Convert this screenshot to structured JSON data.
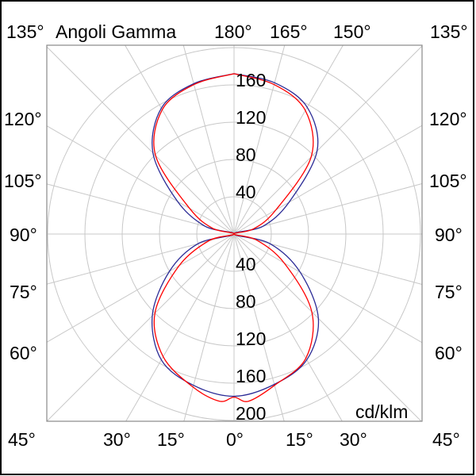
{
  "chart_data": {
    "type": "polar-line",
    "title": "Angoli Gamma",
    "unit_label": "cd/klm",
    "r_ticks": [
      "40",
      "80",
      "120",
      "160",
      "200"
    ],
    "r_tick_values": [
      40,
      80,
      120,
      160,
      200
    ],
    "r_max": 200,
    "angle_step_deg": 15,
    "grid": true,
    "angle_labels": {
      "top": [
        "135°",
        "180°",
        "165°",
        "150°",
        "135°"
      ],
      "left": [
        "120°",
        "105°",
        "90°",
        "75°",
        "60°"
      ],
      "right": [
        "120°",
        "105°",
        "90°",
        "75°",
        "60°"
      ],
      "bottom": [
        "45°",
        "30°",
        "15°",
        "0°",
        "15°",
        "30°",
        "45°"
      ]
    },
    "series": [
      {
        "color": "#2b2b96",
        "gamma": [
          -180,
          -165,
          -150,
          -135,
          -120,
          -105,
          -90,
          -75,
          -60,
          -45,
          -30,
          -15,
          0,
          15,
          30,
          45,
          60,
          75,
          90,
          105,
          120,
          135,
          150,
          165,
          180
        ],
        "values": [
          172,
          167,
          156,
          123,
          70,
          32,
          0,
          40,
          80,
          124,
          156,
          168,
          174,
          167,
          156,
          128,
          82,
          40,
          0,
          32,
          68,
          126,
          157,
          168,
          172
        ]
      },
      {
        "color": "#ff0000",
        "gamma": [
          -180,
          -165,
          -150,
          -135,
          -120,
          -105,
          -90,
          -75,
          -60,
          -45,
          -30,
          -15,
          -5,
          0,
          5,
          15,
          30,
          45,
          60,
          75,
          90,
          105,
          120,
          135,
          150,
          165,
          180
        ],
        "values": [
          172,
          166,
          154,
          119,
          55,
          24,
          0,
          28,
          68,
          120,
          152,
          170,
          180,
          175,
          180,
          168,
          154,
          118,
          62,
          25,
          0,
          22,
          52,
          117,
          153,
          166,
          172
        ]
      }
    ]
  }
}
